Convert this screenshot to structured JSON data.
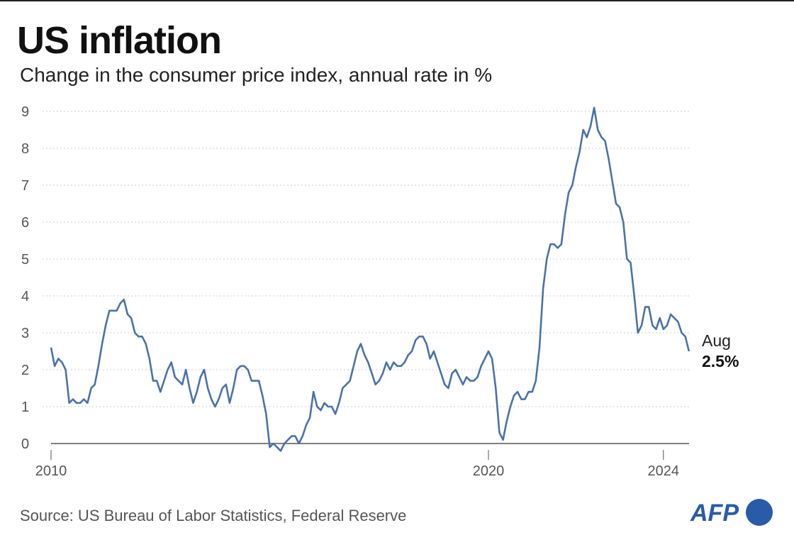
{
  "title": "US inflation",
  "subtitle": "Change in the consumer price index, annual rate in %",
  "source": "Source: US Bureau of Labor Statistics, Federal Reserve",
  "logo": "AFP",
  "colors": {
    "line": "#4a72a8",
    "logo": "#2a5ba8"
  },
  "chart_data": {
    "type": "line",
    "title": "US inflation",
    "subtitle": "Change in the consumer price index, annual rate in %",
    "x_start": "2010-01",
    "x_end": "2024-08",
    "x_ticks": [
      "2010",
      "2020",
      "2024"
    ],
    "y_ticks": [
      0,
      1,
      2,
      3,
      4,
      5,
      6,
      7,
      8,
      9
    ],
    "ylim": [
      0,
      9
    ],
    "grid": "horizontal dotted",
    "annotation": {
      "month": "Aug",
      "value": "2.5%"
    },
    "series": [
      {
        "values": [
          2.6,
          2.1,
          2.3,
          2.2,
          2.0,
          1.1,
          1.2,
          1.1,
          1.1,
          1.2,
          1.1,
          1.5,
          1.6,
          2.1,
          2.7,
          3.2,
          3.6,
          3.6,
          3.6,
          3.8,
          3.9,
          3.5,
          3.4,
          3.0,
          2.9,
          2.9,
          2.7,
          2.3,
          1.7,
          1.7,
          1.4,
          1.7,
          2.0,
          2.2,
          1.8,
          1.7,
          1.6,
          2.0,
          1.5,
          1.1,
          1.4,
          1.8,
          2.0,
          1.5,
          1.2,
          1.0,
          1.2,
          1.5,
          1.6,
          1.1,
          1.5,
          2.0,
          2.1,
          2.1,
          2.0,
          1.7,
          1.7,
          1.7,
          1.3,
          0.8,
          -0.1,
          0.0,
          -0.1,
          -0.2,
          0.0,
          0.1,
          0.2,
          0.2,
          0.0,
          0.2,
          0.5,
          0.7,
          1.4,
          1.0,
          0.9,
          1.1,
          1.0,
          1.0,
          0.8,
          1.1,
          1.5,
          1.6,
          1.7,
          2.1,
          2.5,
          2.7,
          2.4,
          2.2,
          1.9,
          1.6,
          1.7,
          1.9,
          2.2,
          2.0,
          2.2,
          2.1,
          2.1,
          2.2,
          2.4,
          2.5,
          2.8,
          2.9,
          2.9,
          2.7,
          2.3,
          2.5,
          2.2,
          1.9,
          1.6,
          1.5,
          1.9,
          2.0,
          1.8,
          1.6,
          1.8,
          1.7,
          1.7,
          1.8,
          2.1,
          2.3,
          2.5,
          2.3,
          1.5,
          0.3,
          0.1,
          0.6,
          1.0,
          1.3,
          1.4,
          1.2,
          1.2,
          1.4,
          1.4,
          1.7,
          2.6,
          4.2,
          5.0,
          5.4,
          5.4,
          5.3,
          5.4,
          6.2,
          6.8,
          7.0,
          7.5,
          7.9,
          8.5,
          8.3,
          8.6,
          9.1,
          8.5,
          8.3,
          8.2,
          7.7,
          7.1,
          6.5,
          6.4,
          6.0,
          5.0,
          4.9,
          4.0,
          3.0,
          3.2,
          3.7,
          3.7,
          3.2,
          3.1,
          3.4,
          3.1,
          3.2,
          3.5,
          3.4,
          3.3,
          3.0,
          2.9,
          2.5
        ]
      }
    ]
  }
}
